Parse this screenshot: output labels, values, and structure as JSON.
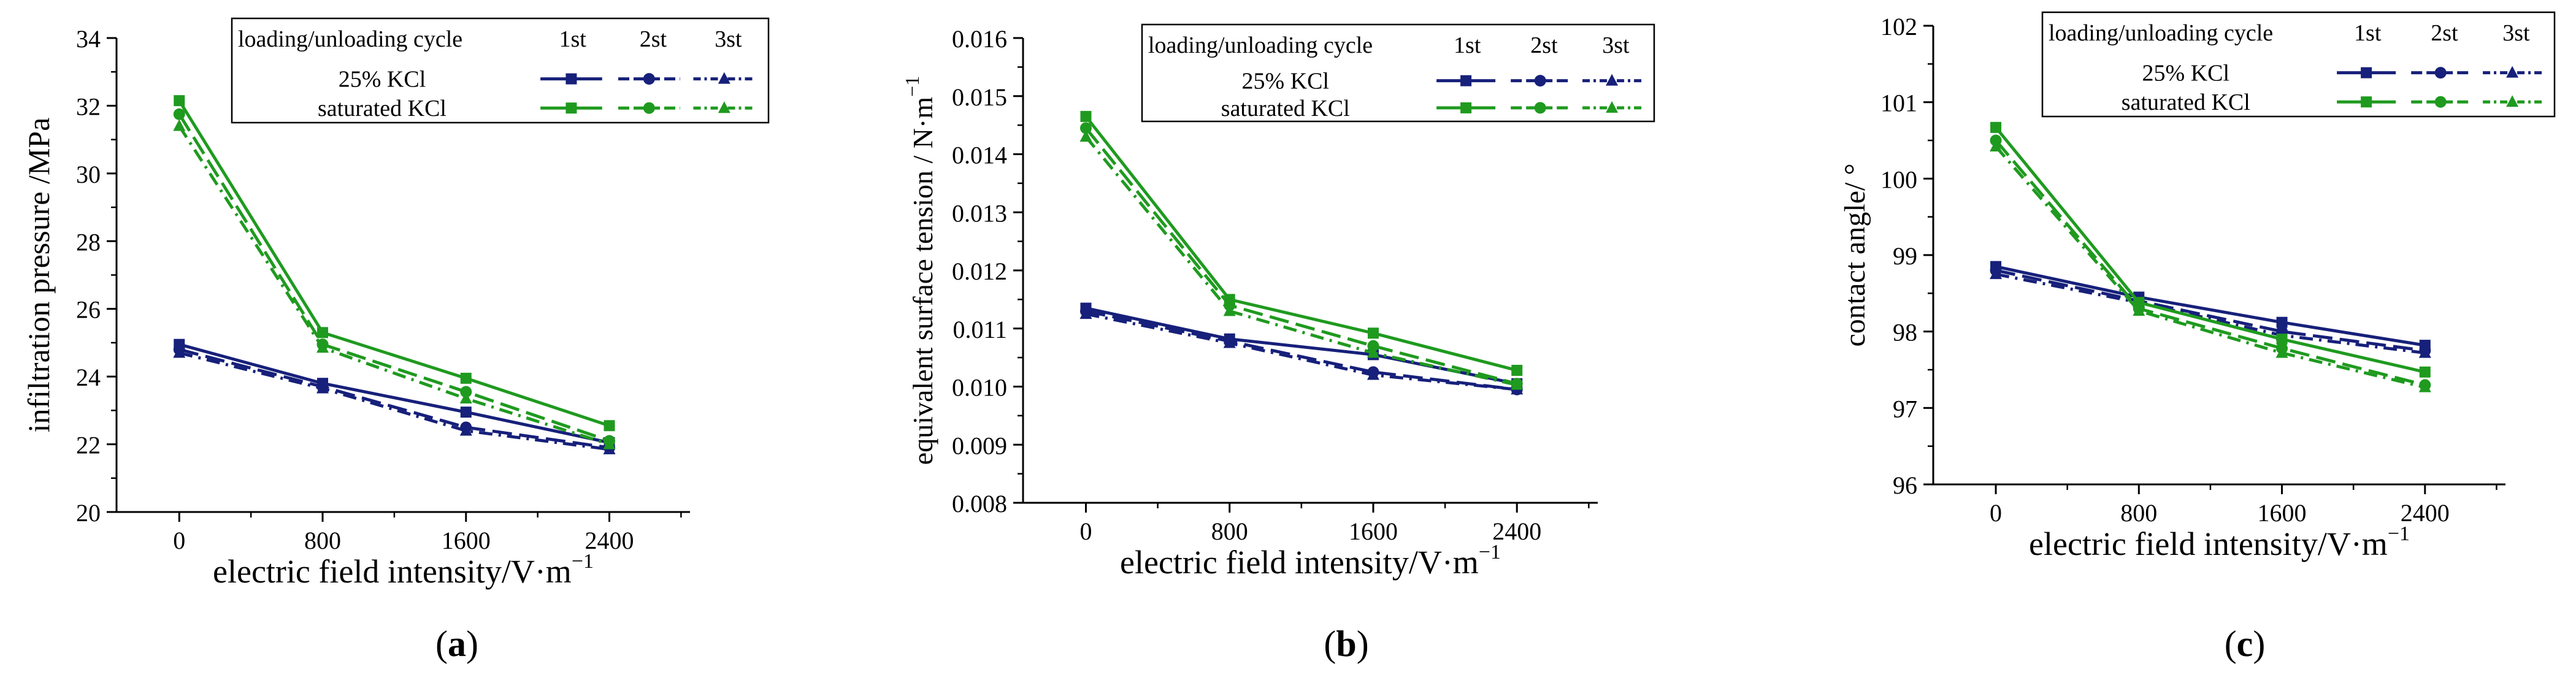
{
  "colors": {
    "kcl25": "#17207a",
    "saturated": "#1f9a1f",
    "axis": "#000000"
  },
  "chart_data": [
    {
      "panel_label": "(a)",
      "panel_prefix": "(",
      "panel_letter": "a",
      "panel_suffix": ")",
      "type": "line",
      "ylabel": "infiltration pressure /MPa",
      "xlabel": "electric field intensity/V·m",
      "xlabel_exp": "−1",
      "x": [
        0,
        800,
        1600,
        2400
      ],
      "xticks": [
        "0",
        "800",
        "1600",
        "2400"
      ],
      "xlim": [
        -350,
        2850
      ],
      "ylim": [
        20,
        34
      ],
      "yticks": [
        20,
        22,
        24,
        26,
        28,
        30,
        32,
        34
      ],
      "ytick_labels": [
        "20",
        "22",
        "24",
        "26",
        "28",
        "30",
        "32",
        "34"
      ],
      "legend": {
        "header": "loading/unloading cycle",
        "cycles": [
          "1st",
          "2st",
          "3st"
        ],
        "groups": [
          "25% KCl",
          "saturated KCl"
        ]
      },
      "series": [
        {
          "name": "25% KCl 1st",
          "group": "25% KCl",
          "cycle": "1st",
          "values": [
            24.95,
            23.8,
            22.95,
            22.05
          ]
        },
        {
          "name": "25% KCl 2st",
          "group": "25% KCl",
          "cycle": "2st",
          "values": [
            24.8,
            23.7,
            22.5,
            21.9
          ]
        },
        {
          "name": "25% KCl 3st",
          "group": "25% KCl",
          "cycle": "3st",
          "values": [
            24.7,
            23.65,
            22.4,
            21.85
          ]
        },
        {
          "name": "saturated KCl 1st",
          "group": "saturated KCl",
          "cycle": "1st",
          "values": [
            32.15,
            25.3,
            23.95,
            22.55
          ]
        },
        {
          "name": "saturated KCl 2st",
          "group": "saturated KCl",
          "cycle": "2st",
          "values": [
            31.75,
            24.95,
            23.55,
            22.1
          ]
        },
        {
          "name": "saturated KCl 3st",
          "group": "saturated KCl",
          "cycle": "3st",
          "values": [
            31.4,
            24.85,
            23.35,
            22.0
          ]
        }
      ]
    },
    {
      "panel_label": "(b)",
      "panel_prefix": "(",
      "panel_letter": "b",
      "panel_suffix": ")",
      "type": "line",
      "ylabel": "equivalent  surface tension / N·m",
      "ylabel_exp": "−1",
      "xlabel": "electric field intensity/V·m",
      "xlabel_exp": "−1",
      "x": [
        0,
        800,
        1600,
        2400
      ],
      "xticks": [
        "0",
        "800",
        "1600",
        "2400"
      ],
      "xlim": [
        -350,
        2850
      ],
      "ylim": [
        0.008,
        0.016
      ],
      "yticks": [
        0.008,
        0.009,
        0.01,
        0.011,
        0.012,
        0.013,
        0.014,
        0.015,
        0.016
      ],
      "ytick_labels": [
        "0.008",
        "0.009",
        "0.010",
        "0.011",
        "0.012",
        "0.013",
        "0.014",
        "0.015",
        "0.016"
      ],
      "legend": {
        "header": "loading/unloading cycle",
        "cycles": [
          "1st",
          "2st",
          "3st"
        ],
        "groups": [
          "25% KCl",
          "saturated KCl"
        ]
      },
      "series": [
        {
          "name": "25% KCl 1st",
          "group": "25% KCl",
          "cycle": "1st",
          "values": [
            0.01135,
            0.01082,
            0.01055,
            0.01005
          ]
        },
        {
          "name": "25% KCl 2st",
          "group": "25% KCl",
          "cycle": "2st",
          "values": [
            0.0113,
            0.01078,
            0.01025,
            0.00995
          ]
        },
        {
          "name": "25% KCl 3st",
          "group": "25% KCl",
          "cycle": "3st",
          "values": [
            0.01125,
            0.01075,
            0.0102,
            0.00995
          ]
        },
        {
          "name": "saturated KCl 1st",
          "group": "saturated KCl",
          "cycle": "1st",
          "values": [
            0.01465,
            0.0115,
            0.01092,
            0.01028
          ]
        },
        {
          "name": "saturated KCl 2st",
          "group": "saturated KCl",
          "cycle": "2st",
          "values": [
            0.01445,
            0.0114,
            0.0107,
            0.01005
          ]
        },
        {
          "name": "saturated KCl 3st",
          "group": "saturated KCl",
          "cycle": "3st",
          "values": [
            0.0143,
            0.0113,
            0.01058,
            0.01003
          ]
        }
      ]
    },
    {
      "panel_label": "(c)",
      "panel_prefix": "(",
      "panel_letter": "c",
      "panel_suffix": ")",
      "type": "line",
      "ylabel": "contact angle/ °",
      "xlabel": "electric field intensity/V·m",
      "xlabel_exp": "−1",
      "x": [
        0,
        800,
        1600,
        2400
      ],
      "xticks": [
        "0",
        "800",
        "1600",
        "2400"
      ],
      "xlim": [
        -350,
        2850
      ],
      "ylim": [
        96,
        102
      ],
      "yticks": [
        96,
        97,
        98,
        99,
        100,
        101,
        102
      ],
      "ytick_labels": [
        "96",
        "97",
        "98",
        "99",
        "100",
        "101",
        "102"
      ],
      "legend": {
        "header": "loading/unloading cycle",
        "cycles": [
          "1st",
          "2st",
          "3st"
        ],
        "groups": [
          "25% KCl",
          "saturated KCl"
        ]
      },
      "series": [
        {
          "name": "25% KCl 1st",
          "group": "25% KCl",
          "cycle": "1st",
          "values": [
            98.85,
            98.45,
            98.12,
            97.82
          ]
        },
        {
          "name": "25% KCl 2st",
          "group": "25% KCl",
          "cycle": "2st",
          "values": [
            98.8,
            98.4,
            98.0,
            97.75
          ]
        },
        {
          "name": "25% KCl 3st",
          "group": "25% KCl",
          "cycle": "3st",
          "values": [
            98.75,
            98.38,
            97.95,
            97.72
          ]
        },
        {
          "name": "saturated KCl 1st",
          "group": "saturated KCl",
          "cycle": "1st",
          "values": [
            100.67,
            98.38,
            97.9,
            97.47
          ]
        },
        {
          "name": "saturated KCl 2st",
          "group": "saturated KCl",
          "cycle": "2st",
          "values": [
            100.5,
            98.3,
            97.78,
            97.3
          ]
        },
        {
          "name": "saturated KCl 3st",
          "group": "saturated KCl",
          "cycle": "3st",
          "values": [
            100.42,
            98.27,
            97.72,
            97.27
          ]
        }
      ]
    }
  ]
}
